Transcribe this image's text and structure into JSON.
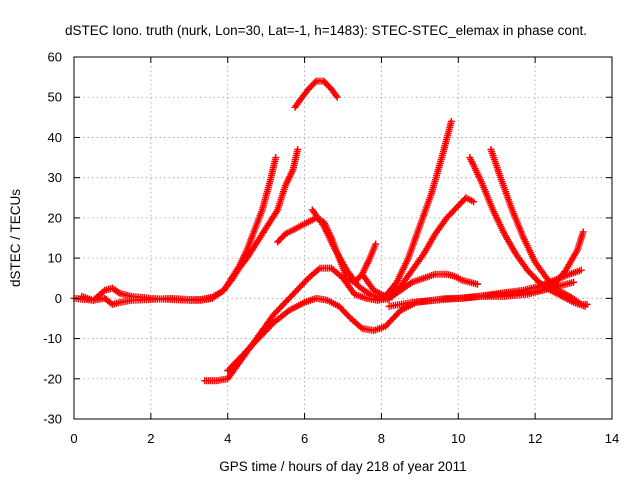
{
  "chart_data": {
    "type": "scatter",
    "title": "dSTEC Iono. truth (nurk, Lon=30, Lat=-1, h=1483): STEC-STEC_elemax in phase cont.",
    "xlabel": "GPS time / hours of day 218 of year 2011",
    "ylabel": "dSTEC  / TECUs",
    "xlim": [
      0,
      14
    ],
    "ylim": [
      -30,
      60
    ],
    "xticks": [
      "0",
      "2",
      "4",
      "6",
      "8",
      "10",
      "12",
      "14"
    ],
    "yticks": [
      "-30",
      "-20",
      "-10",
      "0",
      "10",
      "20",
      "30",
      "40",
      "50",
      "60"
    ],
    "xtick_values": [
      0,
      2,
      4,
      6,
      8,
      10,
      12,
      14
    ],
    "ytick_values": [
      -30,
      -20,
      -10,
      0,
      10,
      20,
      30,
      40,
      50,
      60
    ],
    "grid": true,
    "marker": "plus",
    "color": "#ff0000",
    "series": [
      {
        "x": [
          0,
          0.5,
          0.8,
          1.0,
          1.2,
          1.5,
          2,
          2.5,
          3,
          3.3,
          3.6,
          3.9,
          4.1,
          4.3,
          4.5,
          4.7,
          4.9,
          5.1,
          5.25
        ],
        "y": [
          0,
          -0.5,
          2,
          2.5,
          1.2,
          0.5,
          0,
          -0.3,
          -0.5,
          -0.5,
          0,
          2,
          5,
          8,
          12,
          17,
          22,
          29,
          35
        ]
      },
      {
        "x": [
          0.2,
          0.5,
          0.8,
          1.0,
          1.2,
          1.5,
          2,
          2.5,
          3,
          3.3,
          3.6,
          3.9,
          4.1,
          4.3,
          4.5,
          4.7,
          4.9,
          5.1,
          5.3,
          5.5,
          5.7,
          5.82
        ],
        "y": [
          0.5,
          -0.5,
          0,
          -1.5,
          -1,
          -0.5,
          -0.3,
          0,
          -0.3,
          -0.3,
          0.3,
          2,
          4.5,
          7.5,
          10,
          13,
          16,
          19,
          22,
          28,
          32,
          37
        ]
      },
      {
        "x": [
          5.75,
          5.9,
          6.1,
          6.3,
          6.5,
          6.7,
          6.85
        ],
        "y": [
          47.5,
          49.5,
          52,
          54,
          54,
          52,
          50
        ]
      },
      {
        "x": [
          5.3,
          5.5,
          5.7,
          5.9,
          6.1,
          6.3,
          6.5,
          6.7,
          6.9,
          7.1,
          7.3,
          7.5,
          7.7,
          7.85
        ],
        "y": [
          14,
          16,
          17,
          18,
          19,
          20,
          19,
          15,
          10,
          5,
          4,
          6,
          10,
          13.5
        ]
      },
      {
        "x": [
          6.2,
          6.5,
          6.8,
          7.1,
          7.4,
          7.7,
          8.0,
          8.2
        ],
        "y": [
          22,
          18,
          12,
          7,
          3,
          1,
          0,
          -0.3
        ]
      },
      {
        "x": [
          3.4,
          3.7,
          4.0,
          4.3,
          4.6,
          4.9,
          5.2,
          5.5,
          5.8,
          6.1,
          6.4,
          6.7,
          7.0,
          7.3,
          7.6,
          7.9,
          8.2,
          8.5,
          8.8,
          9.1,
          9.4,
          9.7,
          9.9,
          10.1,
          10.3,
          10.5
        ],
        "y": [
          -20.5,
          -20.5,
          -20,
          -16,
          -12,
          -8,
          -4,
          -1,
          2,
          5,
          7.5,
          7.5,
          5,
          1,
          0,
          -0.5,
          0,
          2,
          4,
          5,
          6,
          6,
          5.5,
          4.5,
          4,
          3.5
        ]
      },
      {
        "x": [
          4.0,
          4.4,
          4.8,
          5.2,
          5.6,
          6.0,
          6.3,
          6.6,
          6.9,
          7.2,
          7.5,
          7.8,
          8.1,
          8.5,
          8.9,
          9.3,
          9.7,
          10.1,
          10.5,
          10.9,
          11.3,
          11.7,
          12.1,
          12.5,
          12.9,
          13.2
        ],
        "y": [
          -18,
          -14,
          -10,
          -6,
          -3,
          -1,
          0,
          -0.5,
          -2,
          -5,
          -7.5,
          -8,
          -7,
          -3,
          -1,
          -0.5,
          0,
          0,
          0.5,
          1,
          1.5,
          2,
          3,
          4.5,
          6,
          7
        ]
      },
      {
        "x": [
          7.5,
          7.8,
          8.1,
          8.4,
          8.7,
          9.0,
          9.3,
          9.6,
          9.82
        ],
        "y": [
          6,
          2,
          0.5,
          4,
          10,
          18,
          26,
          36,
          44
        ]
      },
      {
        "x": [
          7.9,
          8.2,
          8.5,
          8.8,
          9.1,
          9.4,
          9.7,
          10.0,
          10.2,
          10.4
        ],
        "y": [
          0,
          1,
          3,
          7,
          11,
          16,
          20,
          23,
          25,
          24
        ]
      },
      {
        "x": [
          10.3,
          10.6,
          10.9,
          11.2,
          11.5,
          11.8,
          12.1,
          12.4,
          12.7,
          13.0,
          13.3
        ],
        "y": [
          35,
          29,
          22,
          16,
          11,
          7,
          4,
          2,
          0.5,
          -1,
          -2
        ]
      },
      {
        "x": [
          10.85,
          11.1,
          11.4,
          11.7,
          12.0,
          12.3,
          12.6,
          12.9,
          13.2,
          13.35
        ],
        "y": [
          37,
          30,
          22,
          15,
          9,
          5,
          2,
          0.5,
          -1.5,
          -1.5
        ]
      },
      {
        "x": [
          8.2,
          8.8,
          9.4,
          10.0,
          10.6,
          11.2,
          11.8,
          12.2,
          12.5,
          12.8,
          13.1,
          13.25
        ],
        "y": [
          -2,
          -1,
          -0.5,
          0,
          0.5,
          0.5,
          1,
          2,
          3.5,
          7,
          12,
          16.5
        ]
      },
      {
        "x": [
          10.0,
          10.6,
          11.2,
          11.8,
          12.2,
          12.6,
          13.0
        ],
        "y": [
          0,
          0.5,
          1,
          1.5,
          2,
          3,
          4
        ]
      }
    ]
  }
}
